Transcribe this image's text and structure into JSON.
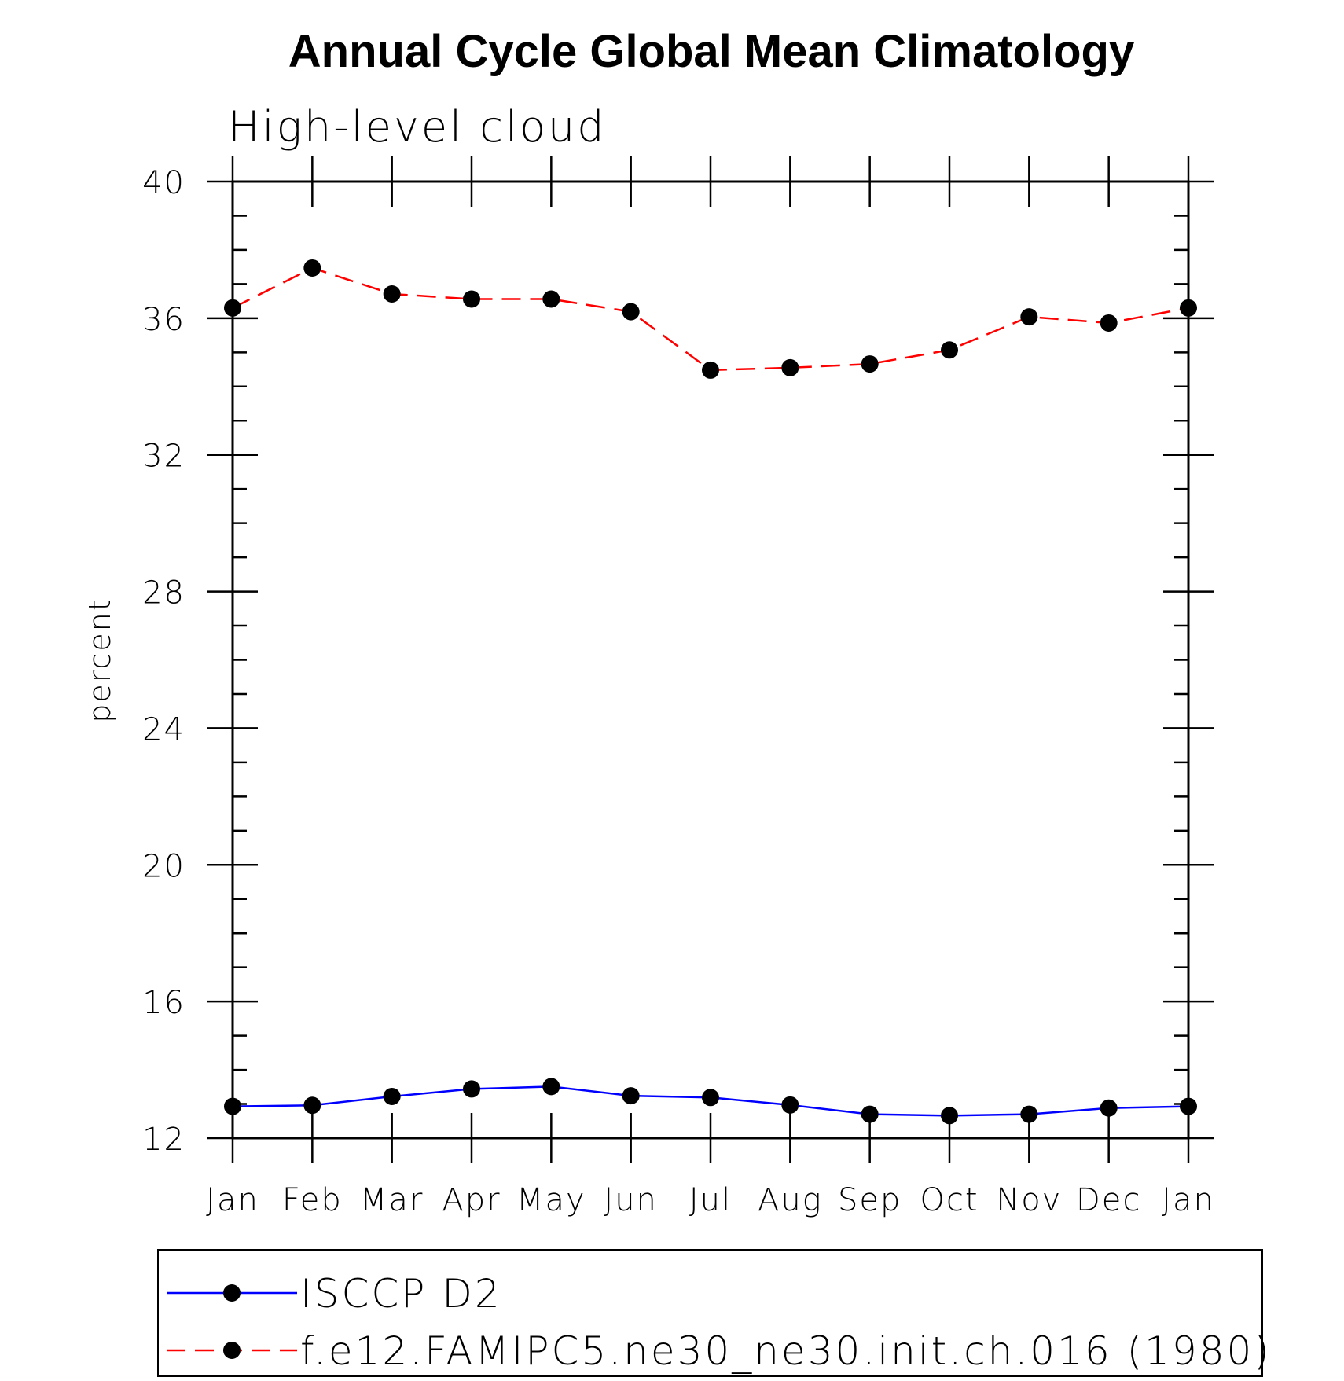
{
  "chart_data": {
    "type": "line",
    "title": "Annual Cycle Global Mean Climatology",
    "subtitle": "High-level cloud",
    "ylabel": "percent",
    "xlabel": "",
    "categories": [
      "Jan",
      "Feb",
      "Mar",
      "Apr",
      "May",
      "Jun",
      "Jul",
      "Aug",
      "Sep",
      "Oct",
      "Nov",
      "Dec",
      "Jan"
    ],
    "ylim": [
      12,
      40
    ],
    "yticks": [
      "12",
      "16",
      "20",
      "24",
      "28",
      "32",
      "36",
      "40"
    ],
    "grid": false,
    "legend_position": "bottom",
    "series": [
      {
        "name": "ISCCP D2",
        "color": "#0000ff",
        "line_style": "solid",
        "marker": "filled-circle",
        "values": [
          12.93,
          12.96,
          13.22,
          13.44,
          13.51,
          13.24,
          13.19,
          12.97,
          12.7,
          12.66,
          12.7,
          12.88,
          12.93
        ]
      },
      {
        "name": "f.e12.FAMIPC5.ne30_ne30.init.ch.016 (1980)",
        "color": "#ff0000",
        "line_style": "dashed",
        "marker": "filled-circle",
        "values": [
          36.3,
          37.47,
          36.71,
          36.56,
          36.56,
          36.19,
          34.48,
          34.55,
          34.66,
          35.07,
          36.04,
          35.86,
          36.3
        ]
      }
    ]
  }
}
